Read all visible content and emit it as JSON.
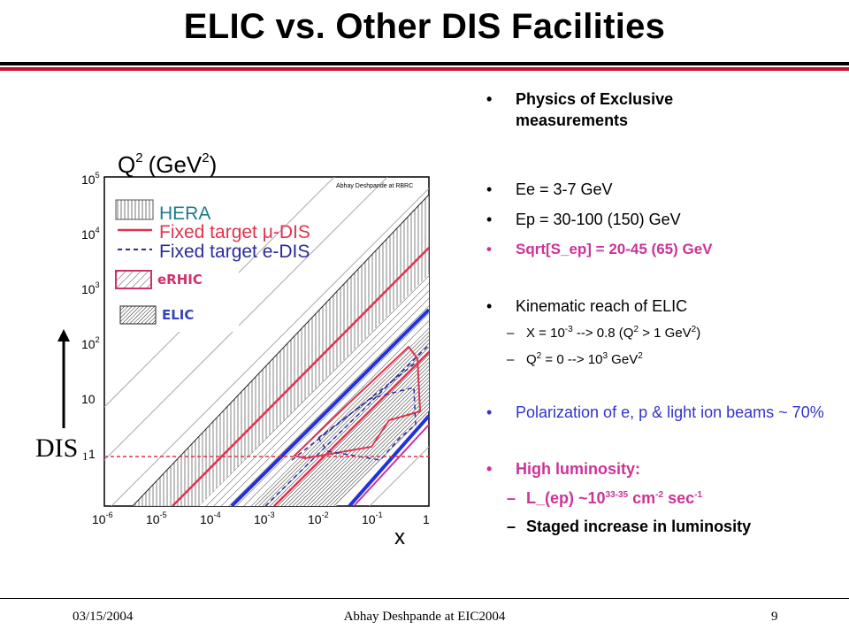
{
  "slide": {
    "title": "ELIC vs. Other DIS Facilities",
    "footer_date": "03/15/2004",
    "footer_center": "Abhay Deshpande at EIC2004",
    "footer_page": "9"
  },
  "figure": {
    "y_axis_label": "Q",
    "y_axis_unit": "(GeV",
    "y_axis_unit_close": ")",
    "superscript_2": "2",
    "x_axis_label": "x",
    "credit": "Abhay Deshpande at RBRC",
    "x_ticks": [
      "10",
      "10",
      "10",
      "10",
      "10",
      "10",
      "1"
    ],
    "x_tick_exps": [
      "-6",
      "-5",
      "-4",
      "-3",
      "-2",
      "-1",
      ""
    ],
    "y_ticks": [
      "10",
      "10",
      "10",
      "10",
      "10",
      "1"
    ],
    "y_tick_exps": [
      "5",
      "4",
      "3",
      "2",
      "",
      ""
    ],
    "legend": {
      "hera": "HERA",
      "fixed_mu": "Fixed target μ-DIS",
      "fixed_e": "Fixed target e-DIS",
      "erhic": "eRHIC",
      "elic": "ELIC"
    },
    "colors": {
      "hera": "#1f7a8a",
      "mu": "#e0334d",
      "e": "#2b2b9e",
      "erhic": "#d12f6a",
      "elic": "#3344bb"
    }
  },
  "dis": {
    "label": "DIS",
    "subscript": "1"
  },
  "bullets": {
    "b1": "Physics of Exclusive measurements",
    "b2": "Ee = 3-7 GeV",
    "b3": "Ep = 30-100 (150) GeV",
    "b4": "Sqrt[S_ep] = 20-45 (65) GeV",
    "b5": "Kinematic reach of ELIC",
    "s1_a": "X = 10",
    "s1_e1": "-3",
    "s1_b": " --> 0.8 (Q",
    "s1_e2": "2",
    "s1_c": " > 1 GeV",
    "s1_e3": "2",
    "s1_d": ")",
    "s2_a": "Q",
    "s2_e1": "2",
    "s2_b": " = 0 --> 10",
    "s2_e2": "3",
    "s2_c": " GeV",
    "s2_e3": "2",
    "b6": "Polarization of e, p & light ion beams ~ 70%",
    "b7": "High luminosity:",
    "s3_a": "L_(ep) ~10",
    "s3_e1": "33-35",
    "s3_b": " cm",
    "s3_e2": "-2",
    "s3_c": " sec",
    "s3_e3": "-1",
    "s4": "Staged increase in luminosity"
  }
}
